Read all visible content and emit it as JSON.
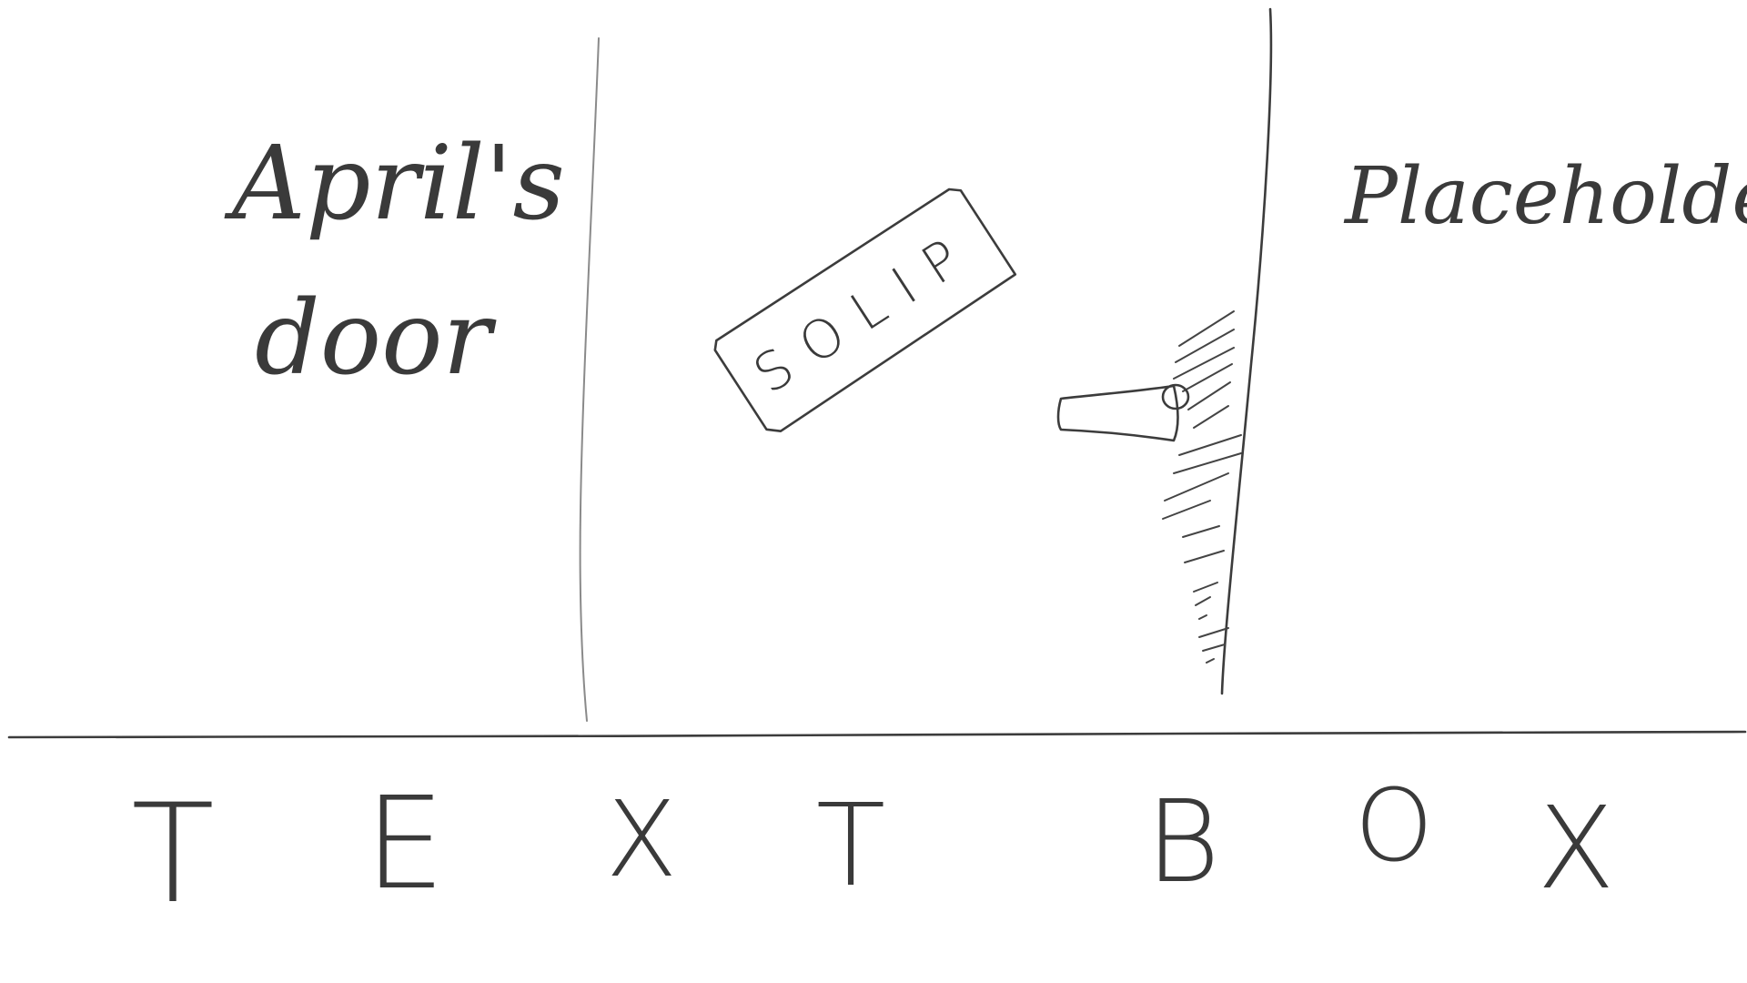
{
  "left_panel": {
    "line1": "April's",
    "line2": "door"
  },
  "door": {
    "sign_text": "SOLIP",
    "handle_icon": "door-handle-icon"
  },
  "right_panel": {
    "label": "Placeholder"
  },
  "text_box": {
    "letters": [
      "T",
      "E",
      "X",
      "T",
      "B",
      "O",
      "X"
    ]
  },
  "colors": {
    "ink": "#3c3c3c",
    "background": "#ffffff"
  }
}
